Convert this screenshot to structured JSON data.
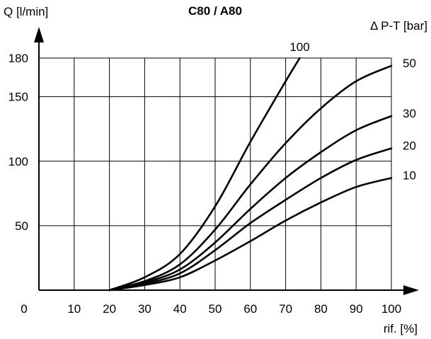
{
  "chart_data": {
    "type": "line",
    "title": "C80 / A80",
    "ylabel": "Q [l/min]",
    "xlabel": "rif. [%]",
    "legend_title": "Δ P-T  [bar]",
    "xlim": [
      0,
      100
    ],
    "ylim": [
      0,
      180
    ],
    "x_ticks": [
      0,
      10,
      20,
      30,
      40,
      50,
      60,
      70,
      80,
      90,
      100
    ],
    "y_ticks": [
      50,
      100,
      150,
      180
    ],
    "grid": true,
    "series": [
      {
        "name": "100",
        "x": [
          20,
          30,
          40,
          50,
          60,
          70,
          74
        ],
        "y": [
          0,
          10,
          28,
          65,
          115,
          162,
          180
        ]
      },
      {
        "name": "50",
        "x": [
          20,
          30,
          40,
          50,
          60,
          70,
          80,
          90,
          100
        ],
        "y": [
          0,
          7,
          20,
          47,
          82,
          114,
          141,
          162,
          174
        ]
      },
      {
        "name": "30",
        "x": [
          20,
          30,
          40,
          50,
          60,
          70,
          80,
          90,
          100
        ],
        "y": [
          0,
          6,
          16,
          37,
          63,
          87,
          107,
          124,
          135
        ]
      },
      {
        "name": "20",
        "x": [
          20,
          30,
          40,
          50,
          60,
          70,
          80,
          90,
          100
        ],
        "y": [
          0,
          5,
          13,
          31,
          52,
          70,
          87,
          101,
          110
        ]
      },
      {
        "name": "10",
        "x": [
          20,
          30,
          40,
          50,
          60,
          70,
          80,
          90,
          100
        ],
        "y": [
          0,
          4,
          10,
          23,
          38,
          54,
          68,
          80,
          87
        ]
      }
    ]
  }
}
